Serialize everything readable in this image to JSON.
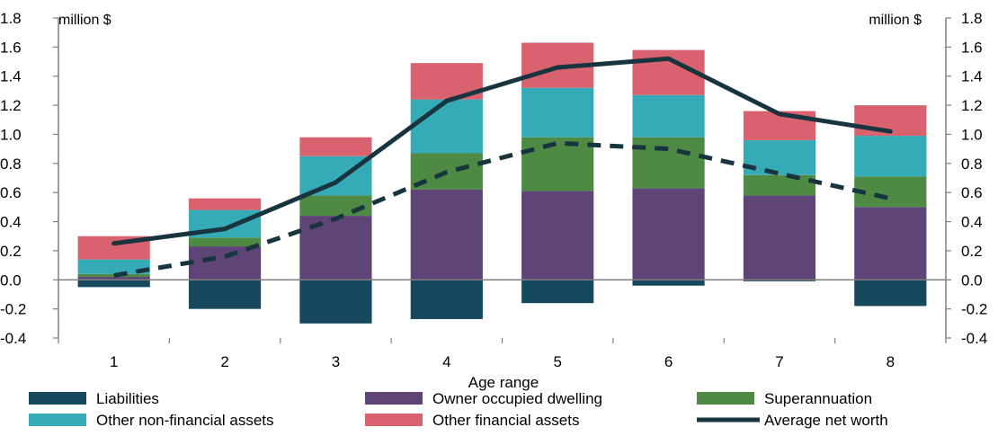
{
  "chart_data": {
    "type": "bar",
    "title": "",
    "xlabel": "Age range",
    "ylabel_left": "million $",
    "ylabel_right": "million $",
    "ylim": [
      -0.4,
      1.8
    ],
    "yticks": [
      "1.8",
      "1.6",
      "1.4",
      "1.2",
      "1.0",
      "0.8",
      "0.6",
      "0.4",
      "0.2",
      "0.0",
      "-0.2",
      "-0.4"
    ],
    "categories": [
      "1",
      "2",
      "3",
      "4",
      "5",
      "6",
      "7",
      "8"
    ],
    "stacked": true,
    "grid": false,
    "legend_position": "bottom",
    "series": [
      {
        "name": "Liabilities",
        "kind": "bar",
        "color": "#17495e",
        "values": [
          -0.05,
          -0.2,
          -0.3,
          -0.27,
          -0.16,
          -0.04,
          -0.01,
          -0.18
        ]
      },
      {
        "name": "Owner occupied dwelling",
        "kind": "bar",
        "color": "#5e4477",
        "values": [
          0.02,
          0.23,
          0.44,
          0.62,
          0.61,
          0.63,
          0.58,
          0.5
        ]
      },
      {
        "name": "Superannuation",
        "kind": "bar",
        "color": "#4f8a45",
        "values": [
          0.02,
          0.06,
          0.14,
          0.25,
          0.37,
          0.35,
          0.14,
          0.21
        ]
      },
      {
        "name": "Other non-financial assets",
        "kind": "bar",
        "color": "#34abb7",
        "values": [
          0.1,
          0.19,
          0.27,
          0.37,
          0.34,
          0.29,
          0.24,
          0.28
        ]
      },
      {
        "name": "Other financial assets",
        "kind": "bar",
        "color": "#d9626f",
        "values": [
          0.16,
          0.08,
          0.13,
          0.25,
          0.31,
          0.31,
          0.2,
          0.21
        ]
      },
      {
        "name": "Average net worth",
        "kind": "line",
        "color": "#17343f",
        "values": [
          0.25,
          0.35,
          0.67,
          1.23,
          1.46,
          1.52,
          1.14,
          1.02
        ]
      },
      {
        "kind": "dashed-line",
        "color": "#17343f",
        "values": [
          0.03,
          0.16,
          0.42,
          0.74,
          0.94,
          0.9,
          0.73,
          0.56
        ]
      }
    ]
  }
}
